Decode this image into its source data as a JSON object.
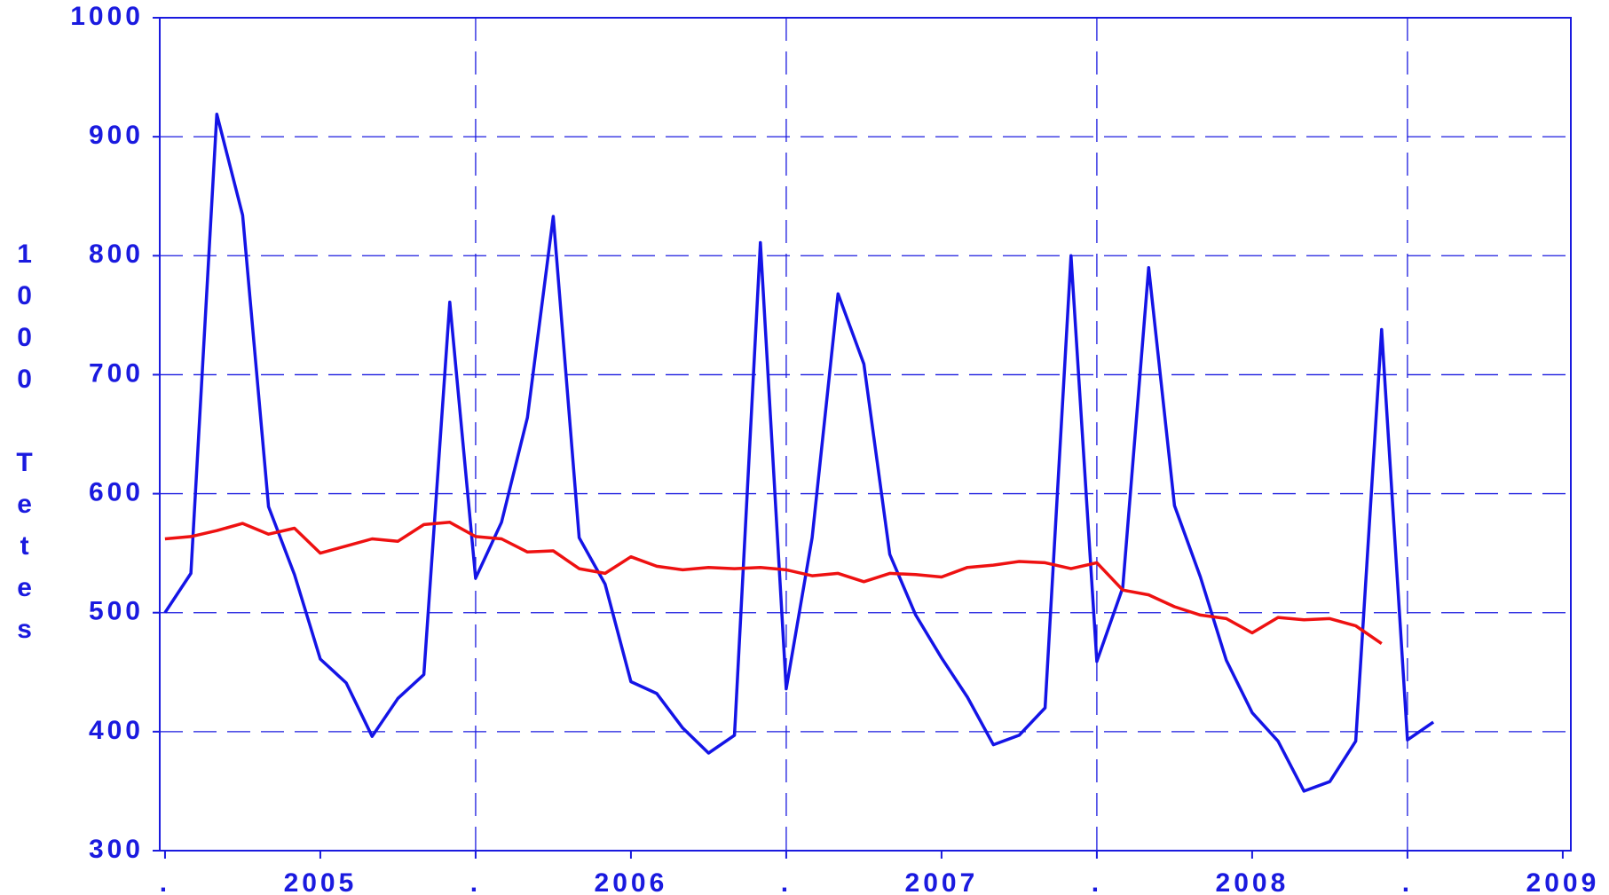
{
  "chart_data": {
    "type": "line",
    "ylabel": "1000 Tetes",
    "x": [
      2004.5,
      2004.5833,
      2004.6667,
      2004.75,
      2004.8333,
      2004.9167,
      2005.0,
      2005.0833,
      2005.1667,
      2005.25,
      2005.3333,
      2005.4167,
      2005.5,
      2005.5833,
      2005.6667,
      2005.75,
      2005.8333,
      2005.9167,
      2006.0,
      2006.0833,
      2006.1667,
      2006.25,
      2006.3333,
      2006.4167,
      2006.5,
      2006.5833,
      2006.6667,
      2006.75,
      2006.8333,
      2006.9167,
      2007.0,
      2007.0833,
      2007.1667,
      2007.25,
      2007.3333,
      2007.4167,
      2007.5,
      2007.5833,
      2007.6667,
      2007.75,
      2007.8333,
      2007.9167,
      2008.0,
      2008.0833,
      2008.1667,
      2008.25,
      2008.3333,
      2008.4167,
      2008.5,
      2008.5833
    ],
    "series": [
      {
        "color": "#1414e6",
        "values": [
          500,
          533,
          919,
          834,
          589,
          532,
          461,
          441,
          396,
          428,
          448,
          761,
          529,
          576,
          664,
          833,
          563,
          524,
          442,
          432,
          403,
          382,
          397,
          811,
          436,
          563,
          768,
          709,
          549,
          498,
          462,
          429,
          389,
          397,
          420,
          800,
          459,
          521,
          790,
          590,
          530,
          460,
          416,
          392,
          350,
          358,
          392,
          738,
          393,
          408
        ]
      },
      {
        "color": "#ee1111",
        "values": [
          562,
          564,
          569,
          575,
          566,
          571,
          550,
          556,
          562,
          560,
          574,
          576,
          564,
          562,
          551,
          552,
          537,
          533,
          547,
          539,
          536,
          538,
          537,
          538,
          536,
          531,
          533,
          526,
          533,
          532,
          530,
          538,
          540,
          543,
          542,
          537,
          542,
          519,
          515,
          505,
          498,
          495,
          483,
          496,
          494,
          495,
          489,
          474,
          null,
          null
        ]
      }
    ],
    "xlim": [
      2004.483,
      2009.026
    ],
    "xticks": [
      {
        "value": 2004.5,
        "label": "."
      },
      2005,
      {
        "value": 2005.5,
        "label": "."
      },
      2006,
      {
        "value": 2006.5,
        "label": "."
      },
      2007,
      {
        "value": 2007.5,
        "label": "."
      },
      2008,
      {
        "value": 2008.5,
        "label": "."
      },
      2009
    ],
    "ylim": [
      300,
      1000
    ],
    "yticks": [
      300,
      400,
      500,
      600,
      700,
      800,
      900,
      1000
    ],
    "grid": true
  }
}
